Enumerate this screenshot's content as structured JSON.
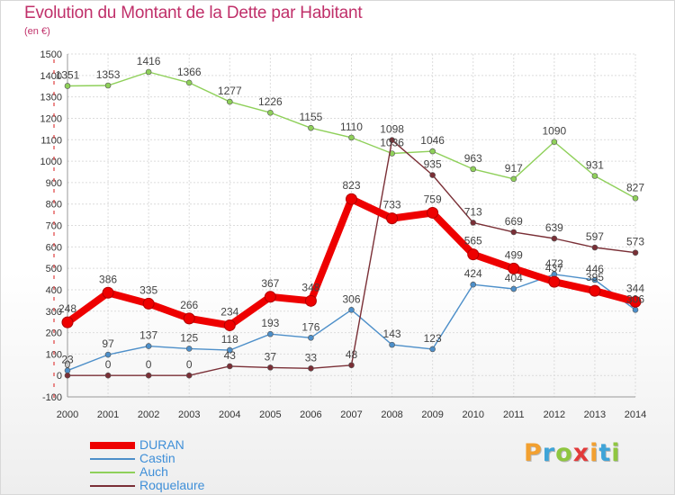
{
  "header": {
    "title": "Evolution du Montant de la Dette par Habitant",
    "subtitle": "(en €)"
  },
  "logo": {
    "text": "Proxiti",
    "letters": [
      {
        "ch": "P",
        "color": "#f2a030"
      },
      {
        "ch": "r",
        "color": "#3fa4d8"
      },
      {
        "ch": "o",
        "color": "#8fc640"
      },
      {
        "ch": "x",
        "color": "#e23a3a"
      },
      {
        "ch": "i",
        "color": "#f2a030"
      },
      {
        "ch": "t",
        "color": "#3fa4d8"
      },
      {
        "ch": "i",
        "color": "#8fc640"
      }
    ]
  },
  "chart_data": {
    "type": "line",
    "title": "Evolution du Montant de la Dette par Habitant",
    "subtitle": "(en €)",
    "x": [
      "2000",
      "2001",
      "2002",
      "2003",
      "2004",
      "2005",
      "2006",
      "2007",
      "2008",
      "2009",
      "2010",
      "2011",
      "2012",
      "2013",
      "2014"
    ],
    "ylim": [
      -100,
      1500
    ],
    "yticks": [
      -100,
      0,
      100,
      200,
      300,
      400,
      500,
      600,
      700,
      800,
      900,
      1000,
      1100,
      1200,
      1300,
      1400,
      1500
    ],
    "grid": true,
    "legend_placement": "bottom-left",
    "series": [
      {
        "name": "DURAN",
        "color": "#ee0000",
        "values": [
          248,
          386,
          335,
          266,
          234,
          367,
          348,
          823,
          733,
          759,
          565,
          499,
          437,
          395,
          344
        ]
      },
      {
        "name": "Castin",
        "color": "#4d8fc9",
        "values": [
          23,
          97,
          137,
          125,
          118,
          193,
          176,
          306,
          143,
          123,
          424,
          404,
          472,
          446,
          306
        ]
      },
      {
        "name": "Auch",
        "color": "#8fd05a",
        "values": [
          1351,
          1353,
          1416,
          1366,
          1277,
          1226,
          1155,
          1110,
          1036,
          1046,
          963,
          917,
          1090,
          931,
          827
        ]
      },
      {
        "name": "Roquelaure",
        "color": "#7a2f36",
        "values": [
          0,
          0,
          0,
          0,
          43,
          37,
          33,
          48,
          1098,
          935,
          713,
          669,
          639,
          597,
          573
        ]
      }
    ]
  }
}
